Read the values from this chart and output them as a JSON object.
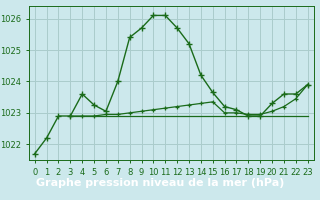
{
  "bg_color": "#cce8ec",
  "grid_color": "#aacccc",
  "line_color": "#1a6b1a",
  "title_text": "Graphe pression niveau de la mer (hPa)",
  "title_bg": "#4a8a4a",
  "title_fg": "#ffffff",
  "xlim": [
    -0.5,
    23.5
  ],
  "ylim": [
    1021.5,
    1026.4
  ],
  "yticks": [
    1022,
    1023,
    1024,
    1025,
    1026
  ],
  "xticks": [
    0,
    1,
    2,
    3,
    4,
    5,
    6,
    7,
    8,
    9,
    10,
    11,
    12,
    13,
    14,
    15,
    16,
    17,
    18,
    19,
    20,
    21,
    22,
    23
  ],
  "curve1_x": [
    0,
    1,
    2,
    3,
    4,
    5,
    6,
    7,
    8,
    9,
    10,
    11,
    12,
    13,
    14,
    15,
    16,
    17,
    18,
    19,
    20,
    21,
    22,
    23
  ],
  "curve1_y": [
    1021.7,
    1022.2,
    1022.9,
    1022.9,
    1023.6,
    1023.25,
    1023.05,
    1024.0,
    1025.4,
    1025.7,
    1026.1,
    1026.1,
    1025.7,
    1025.2,
    1024.2,
    1023.65,
    1023.2,
    1023.1,
    1022.9,
    1022.9,
    1023.3,
    1023.6,
    1023.6,
    1023.9
  ],
  "curve2_x": [
    3,
    4,
    5,
    6,
    7,
    8,
    9,
    10,
    11,
    12,
    13,
    14,
    15,
    16,
    17,
    18,
    19,
    20,
    21,
    22,
    23
  ],
  "curve2_y": [
    1022.9,
    1022.9,
    1022.9,
    1022.95,
    1022.95,
    1023.0,
    1023.05,
    1023.1,
    1023.15,
    1023.2,
    1023.25,
    1023.3,
    1023.35,
    1023.0,
    1023.0,
    1022.95,
    1022.95,
    1023.05,
    1023.2,
    1023.45,
    1023.9
  ],
  "curve3_x": [
    3,
    23
  ],
  "curve3_y": [
    1022.9,
    1022.9
  ],
  "tick_fontsize": 6,
  "title_fontsize": 8,
  "figsize": [
    3.2,
    2.0
  ],
  "dpi": 100
}
